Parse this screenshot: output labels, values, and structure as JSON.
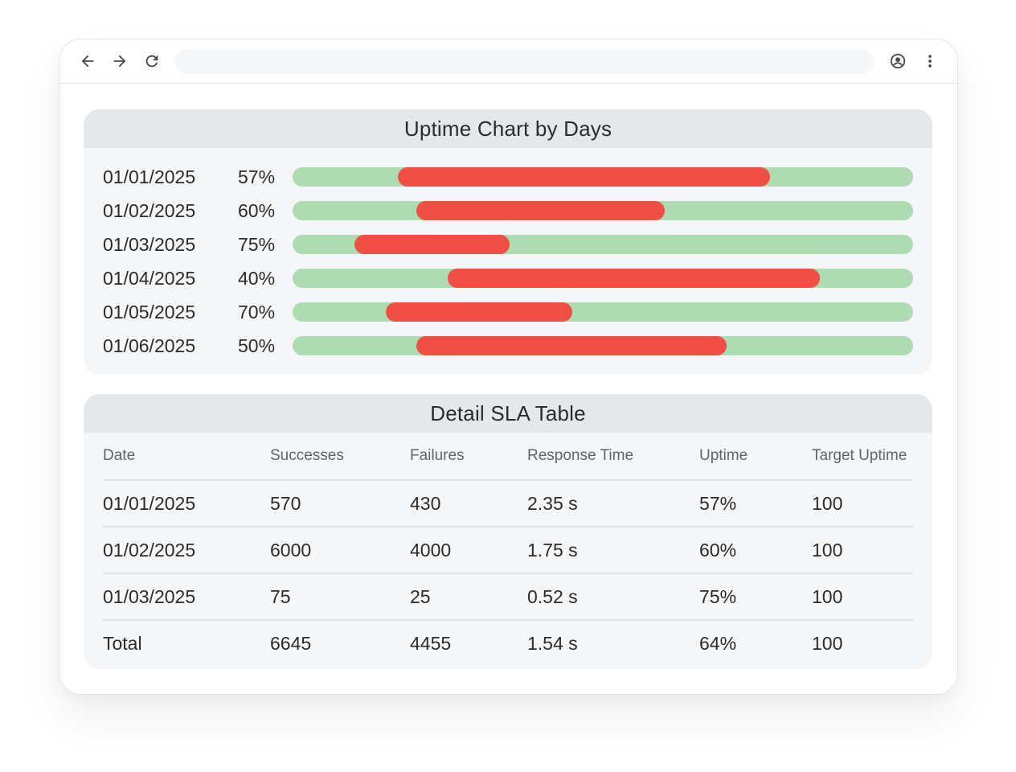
{
  "browser": {
    "toolbar_icons": [
      "back-arrow-icon",
      "forward-arrow-icon",
      "reload-icon",
      "account-icon",
      "more-vert-icon"
    ],
    "address": ""
  },
  "uptime_chart": {
    "title": "Uptime Chart by Days",
    "colors": {
      "success": "#afdbb2",
      "failure": "#f14e45"
    },
    "rows": [
      {
        "date": "01/01/2025",
        "uptime": "57%"
      },
      {
        "date": "01/02/2025",
        "uptime": "60%"
      },
      {
        "date": "01/03/2025",
        "uptime": "75%"
      },
      {
        "date": "01/04/2025",
        "uptime": "40%"
      },
      {
        "date": "01/05/2025",
        "uptime": "70%"
      },
      {
        "date": "01/06/2025",
        "uptime": "50%"
      }
    ]
  },
  "chart_data": {
    "type": "bar",
    "title": "Uptime Chart by Days",
    "categories": [
      "01/01/2025",
      "01/02/2025",
      "01/03/2025",
      "01/04/2025",
      "01/05/2025",
      "01/06/2025"
    ],
    "values": [
      57,
      60,
      75,
      40,
      70,
      50
    ],
    "failure_segments": [
      {
        "start": 0.17,
        "end": 0.77
      },
      {
        "start": 0.2,
        "end": 0.6
      },
      {
        "start": 0.1,
        "end": 0.35
      },
      {
        "start": 0.25,
        "end": 0.85
      },
      {
        "start": 0.15,
        "end": 0.45
      },
      {
        "start": 0.2,
        "end": 0.7
      }
    ],
    "xlabel": "",
    "ylabel": ""
  },
  "sla_table": {
    "title": "Detail SLA Table",
    "headers": [
      "Date",
      "Successes",
      "Failures",
      "Response Time",
      "Uptime",
      "Target Uptime"
    ],
    "rows": [
      [
        "01/01/2025",
        "570",
        "430",
        "2.35 s",
        "57%",
        "100"
      ],
      [
        "01/02/2025",
        "6000",
        "4000",
        "1.75 s",
        "60%",
        "100"
      ],
      [
        "01/03/2025",
        "75",
        "25",
        "0.52 s",
        "75%",
        "100"
      ]
    ],
    "total": [
      "Total",
      "6645",
      "4455",
      "1.54 s",
      "64%",
      "100"
    ]
  }
}
